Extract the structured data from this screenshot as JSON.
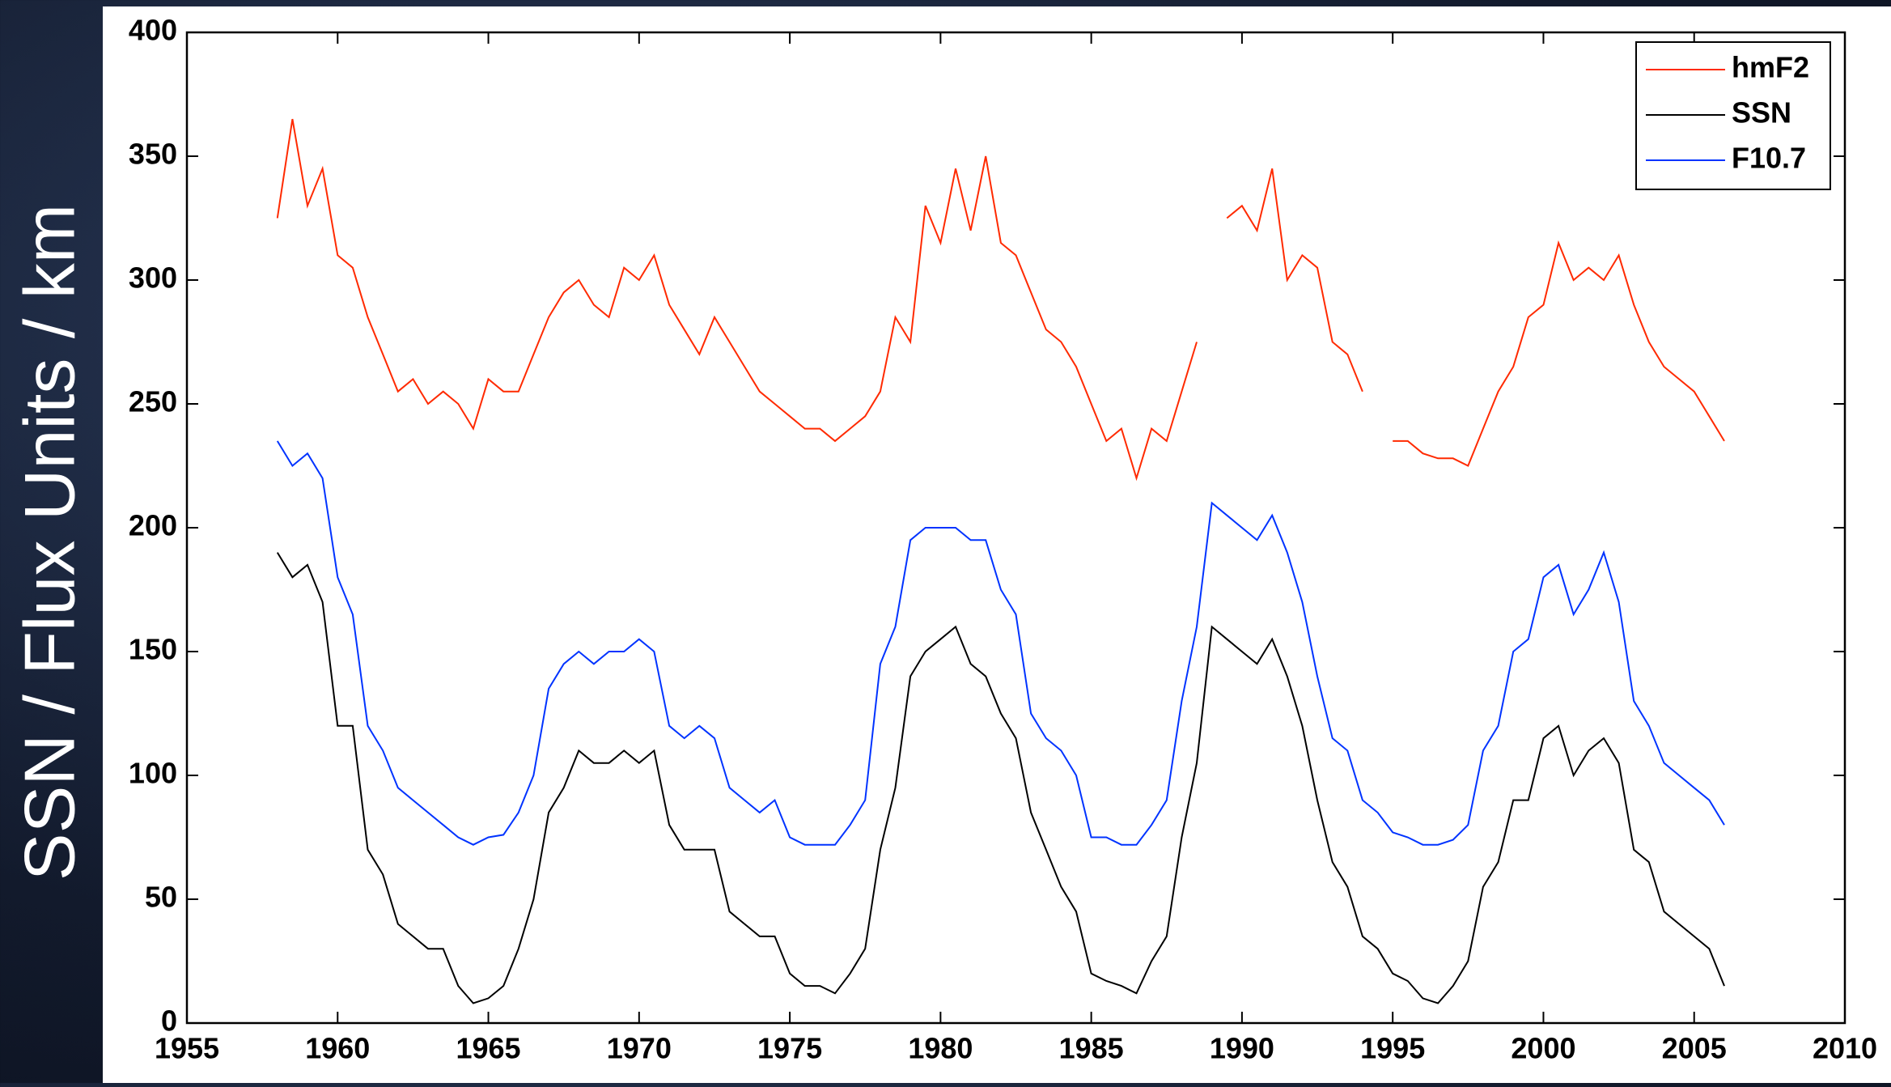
{
  "chart_data": {
    "type": "line",
    "ylabel": "SSN / Flux Units / km",
    "x": [
      1958,
      1958.5,
      1959,
      1959.5,
      1960,
      1960.5,
      1961,
      1961.5,
      1962,
      1962.5,
      1963,
      1963.5,
      1964,
      1964.5,
      1965,
      1965.5,
      1966,
      1966.5,
      1967,
      1967.5,
      1968,
      1968.5,
      1969,
      1969.5,
      1970,
      1970.5,
      1971,
      1971.5,
      1972,
      1972.5,
      1973,
      1973.5,
      1974,
      1974.5,
      1975,
      1975.5,
      1976,
      1976.5,
      1977,
      1977.5,
      1978,
      1978.5,
      1979,
      1979.5,
      1980,
      1980.5,
      1981,
      1981.5,
      1982,
      1982.5,
      1983,
      1983.5,
      1984,
      1984.5,
      1985,
      1985.5,
      1986,
      1986.5,
      1987,
      1987.5,
      1988,
      1988.5,
      1989,
      1989.5,
      1990,
      1990.5,
      1991,
      1991.5,
      1992,
      1992.5,
      1993,
      1993.5,
      1994,
      1994.5,
      1995,
      1995.5,
      1996,
      1996.5,
      1997,
      1997.5,
      1998,
      1998.5,
      1999,
      1999.5,
      2000,
      2000.5,
      2001,
      2001.5,
      2002,
      2002.5,
      2003,
      2003.5,
      2004,
      2004.5,
      2005,
      2005.5,
      2006
    ],
    "series": [
      {
        "name": "hmF2",
        "color": "#ff2a00",
        "values": [
          325,
          365,
          330,
          345,
          310,
          305,
          285,
          270,
          255,
          260,
          250,
          255,
          250,
          240,
          260,
          255,
          255,
          270,
          285,
          295,
          300,
          290,
          285,
          305,
          300,
          310,
          290,
          280,
          270,
          285,
          275,
          265,
          255,
          250,
          245,
          240,
          240,
          235,
          240,
          245,
          255,
          285,
          275,
          330,
          315,
          345,
          320,
          350,
          315,
          310,
          295,
          280,
          275,
          265,
          250,
          235,
          240,
          220,
          240,
          235,
          255,
          275,
          null,
          325,
          330,
          320,
          345,
          300,
          310,
          305,
          275,
          270,
          255,
          null,
          235,
          235,
          230,
          228,
          228,
          225,
          240,
          255,
          265,
          285,
          290,
          315,
          300,
          305,
          300,
          310,
          290,
          275,
          265,
          260,
          255,
          245,
          235
        ]
      },
      {
        "name": "SSN",
        "color": "#000000",
        "values": [
          190,
          180,
          185,
          170,
          120,
          120,
          70,
          60,
          40,
          35,
          30,
          30,
          15,
          8,
          10,
          15,
          30,
          50,
          85,
          95,
          110,
          105,
          105,
          110,
          105,
          110,
          80,
          70,
          70,
          70,
          45,
          40,
          35,
          35,
          20,
          15,
          15,
          12,
          20,
          30,
          70,
          95,
          140,
          150,
          155,
          160,
          145,
          140,
          125,
          115,
          85,
          70,
          55,
          45,
          20,
          17,
          15,
          12,
          25,
          35,
          75,
          105,
          160,
          155,
          150,
          145,
          155,
          140,
          120,
          90,
          65,
          55,
          35,
          30,
          20,
          17,
          10,
          8,
          15,
          25,
          55,
          65,
          90,
          90,
          115,
          120,
          100,
          110,
          115,
          105,
          70,
          65,
          45,
          40,
          35,
          30,
          15
        ]
      },
      {
        "name": "F10.7",
        "color": "#0033ff",
        "values": [
          235,
          225,
          230,
          220,
          180,
          165,
          120,
          110,
          95,
          90,
          85,
          80,
          75,
          72,
          75,
          76,
          85,
          100,
          135,
          145,
          150,
          145,
          150,
          150,
          155,
          150,
          120,
          115,
          120,
          115,
          95,
          90,
          85,
          90,
          75,
          72,
          72,
          72,
          80,
          90,
          145,
          160,
          195,
          200,
          200,
          200,
          195,
          195,
          175,
          165,
          125,
          115,
          110,
          100,
          75,
          75,
          72,
          72,
          80,
          90,
          130,
          160,
          210,
          205,
          200,
          195,
          205,
          190,
          170,
          140,
          115,
          110,
          90,
          85,
          77,
          75,
          72,
          72,
          74,
          80,
          110,
          120,
          150,
          155,
          180,
          185,
          165,
          175,
          190,
          170,
          130,
          120,
          105,
          100,
          95,
          90,
          80
        ]
      }
    ],
    "xlim": [
      1955,
      2010
    ],
    "xticks": [
      1955,
      1960,
      1965,
      1970,
      1975,
      1980,
      1985,
      1990,
      1995,
      2000,
      2005,
      2010
    ],
    "ylim": [
      0,
      400
    ],
    "yticks": [
      0,
      50,
      100,
      150,
      200,
      250,
      300,
      350,
      400
    ],
    "grid": false,
    "legend": "upper right"
  }
}
